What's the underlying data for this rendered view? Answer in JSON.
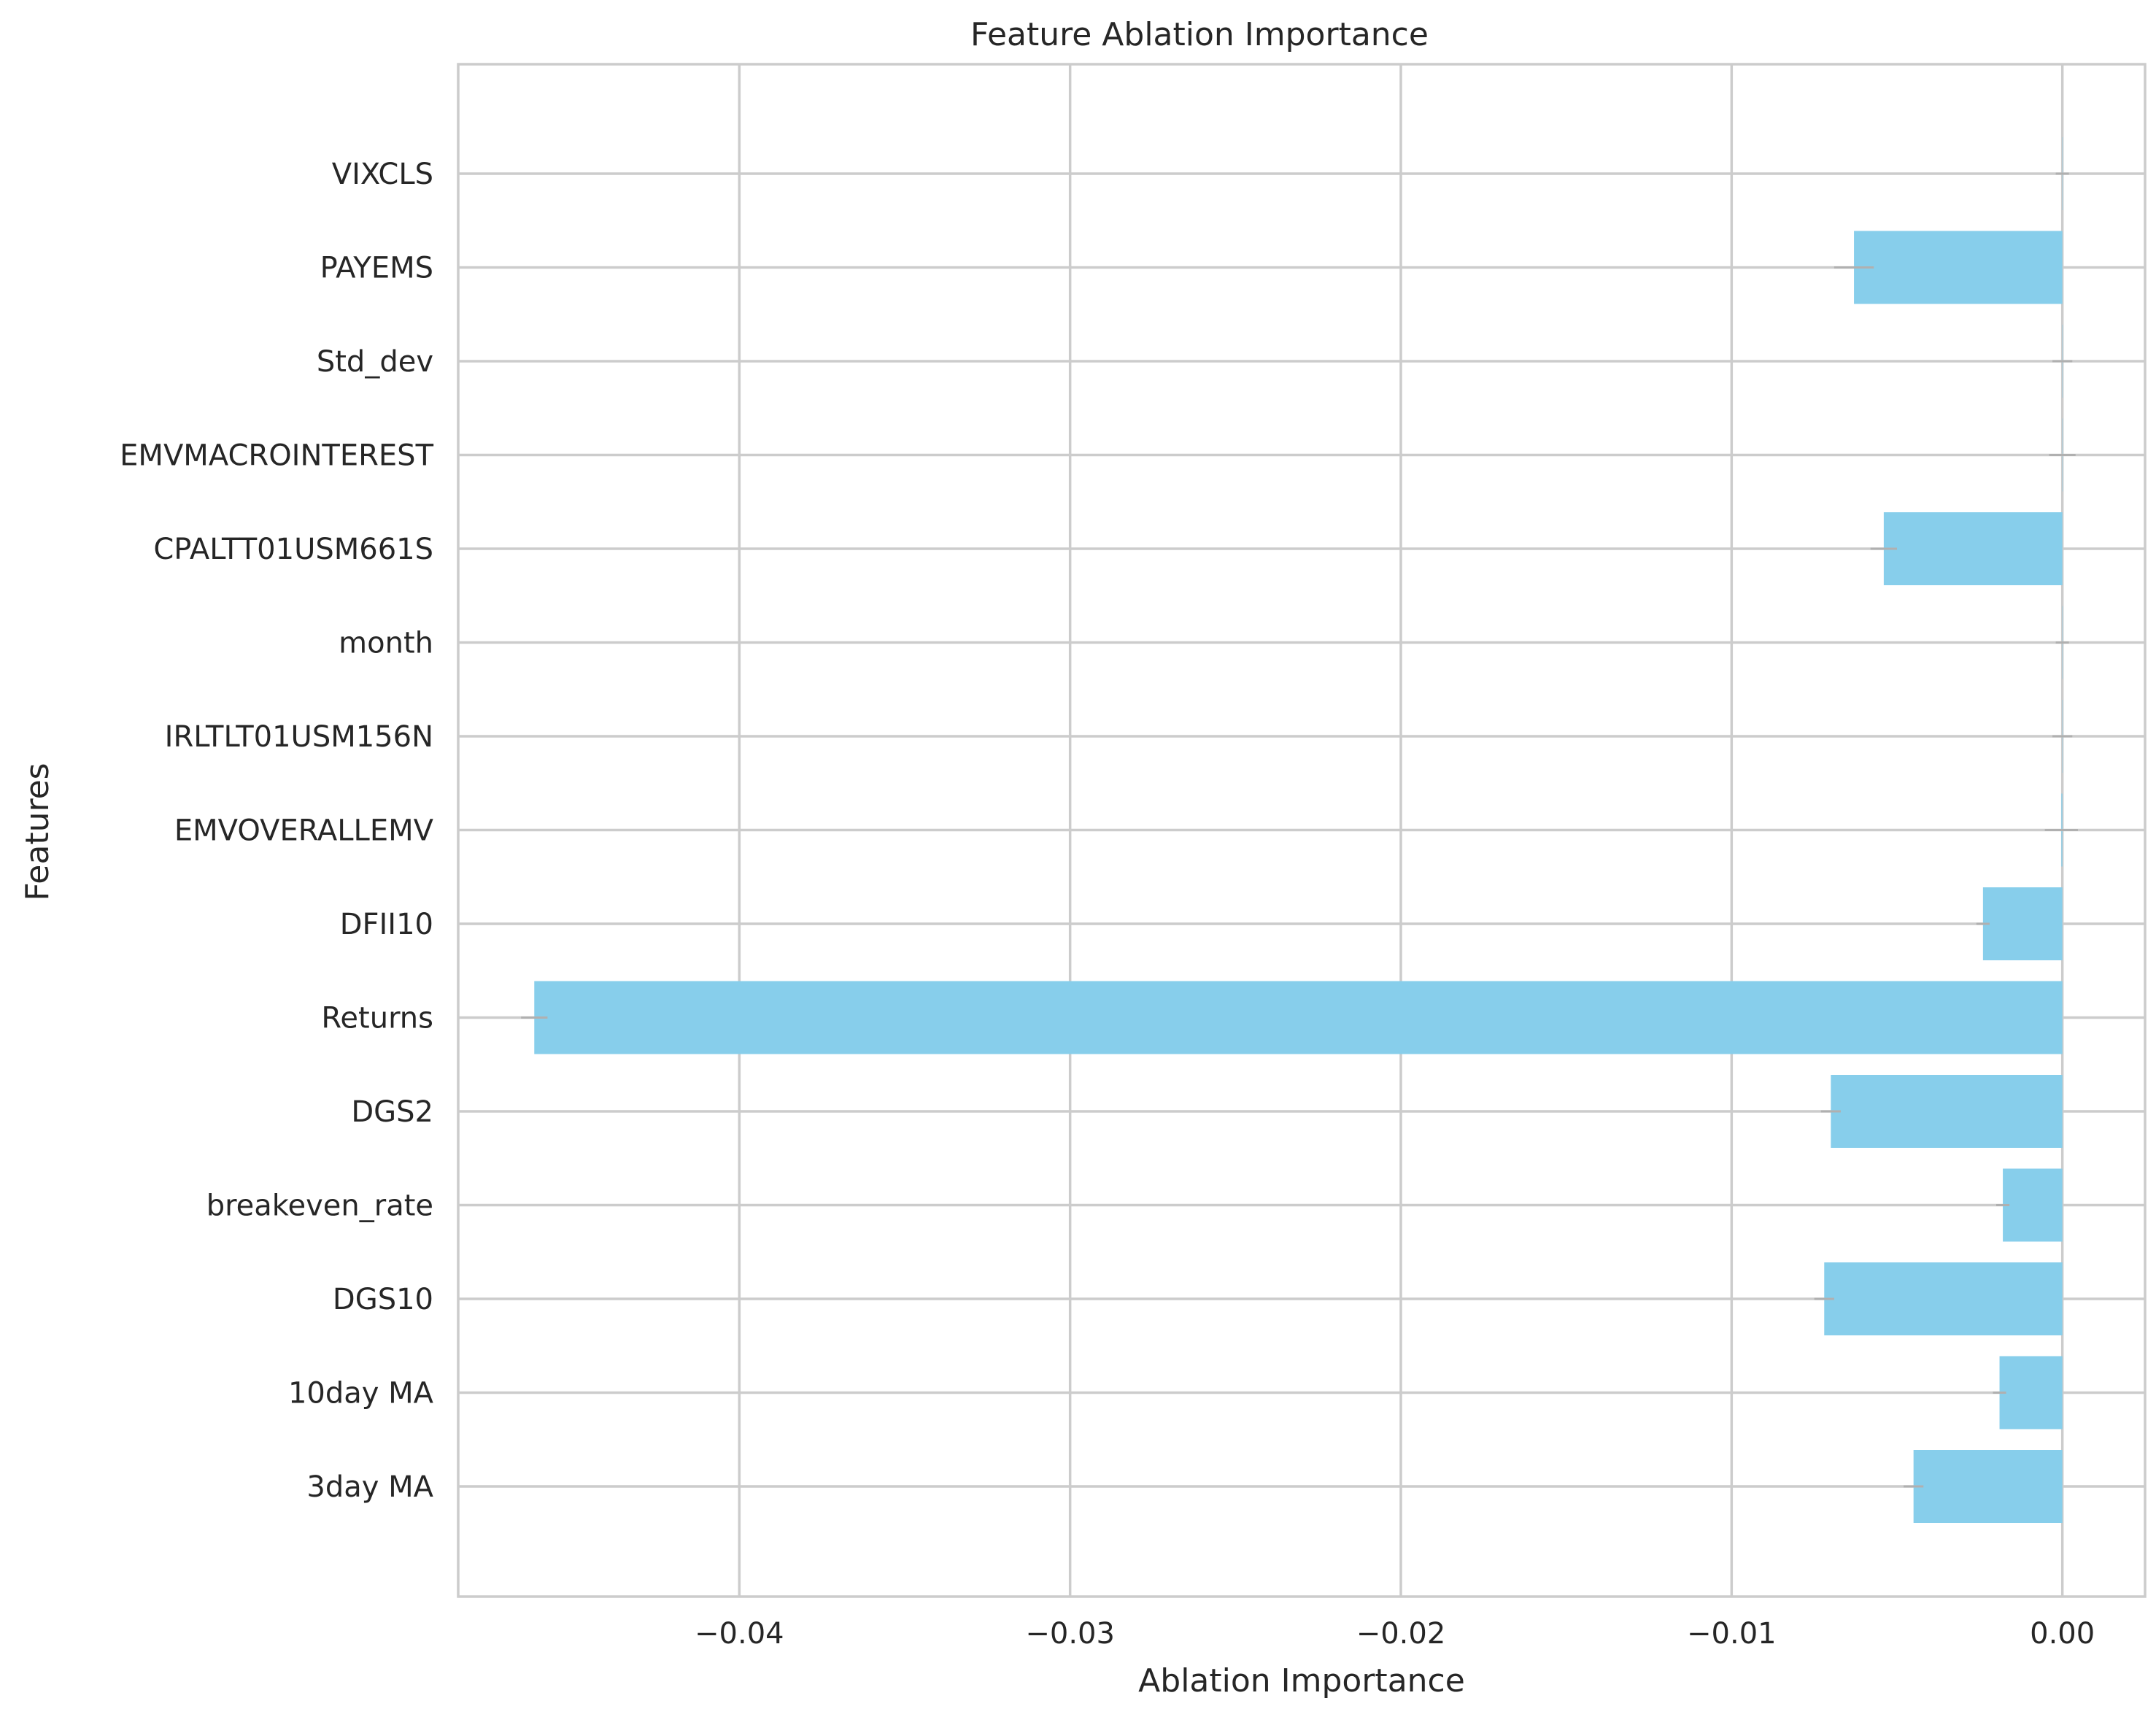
{
  "chart_data": {
    "type": "bar",
    "orientation": "horizontal",
    "title": "Feature Ablation Importance",
    "xlabel": "Ablation Importance",
    "ylabel": "Features",
    "categories": [
      "VIXCLS",
      "PAYEMS",
      "Std_dev",
      "EMVMACROINTEREST",
      "CPALTT01USM661S",
      "month",
      "IRLTLT01USM156N",
      "EMVOVERALLEMV",
      "DFII10",
      "Returns",
      "DGS2",
      "breakeven_rate",
      "DGS10",
      "10day MA",
      "3day MA"
    ],
    "values": [
      0.0,
      -0.0063,
      0.0,
      0.0,
      -0.0054,
      0.0,
      0.0,
      -3e-05,
      -0.0024,
      -0.0462,
      -0.007,
      -0.0018,
      -0.0072,
      -0.0019,
      -0.0045
    ],
    "error": [
      0.0002,
      0.0006,
      0.0003,
      0.0004,
      0.0004,
      0.0002,
      0.0003,
      0.0005,
      0.0002,
      0.0004,
      0.0003,
      0.0002,
      0.0003,
      0.0002,
      0.0003
    ],
    "xticks": [
      -0.04,
      -0.03,
      -0.02,
      -0.01,
      0.0
    ],
    "xtick_labels": [
      "−0.04",
      "−0.03",
      "−0.02",
      "−0.01",
      "0.00"
    ],
    "xlim": [
      -0.0485,
      0.0025
    ],
    "grid": true,
    "colors": {
      "bar": "#87ceeb",
      "grid": "#cccccc",
      "axes_edge": "#cccccc",
      "error": "#b0b0b0"
    }
  }
}
